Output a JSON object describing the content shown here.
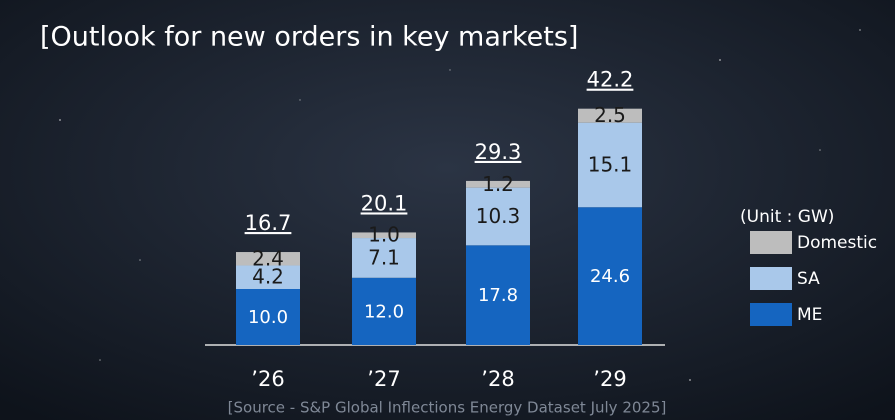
{
  "chart_data": {
    "type": "stacked-bar",
    "title": "[Outlook for new orders in key markets]",
    "categories": [
      "’26",
      "’27",
      "’28",
      "’29"
    ],
    "series": [
      {
        "name": "ME",
        "color": "#1565c0",
        "values": [
          10.0,
          12.0,
          17.8,
          24.6
        ],
        "value_labels": [
          "10.0",
          "12.0",
          "17.8",
          "24.6"
        ]
      },
      {
        "name": "SA",
        "color": "#a9c8ea",
        "values": [
          4.2,
          7.1,
          10.3,
          15.1
        ],
        "value_labels": [
          "4.2",
          "7.1",
          "10.3",
          "15.1"
        ]
      },
      {
        "name": "Domestic",
        "color": "#bdbdbd",
        "values": [
          2.4,
          1.0,
          1.2,
          2.5
        ],
        "value_labels": [
          "2.4",
          "1.0",
          "1.2",
          "2.5"
        ]
      }
    ],
    "totals": [
      16.7,
      20.1,
      29.3,
      42.2
    ],
    "unit_label": "(Unit : GW)",
    "source": "[Source - S&P Global Inflections Energy Dataset  July 2025]"
  }
}
